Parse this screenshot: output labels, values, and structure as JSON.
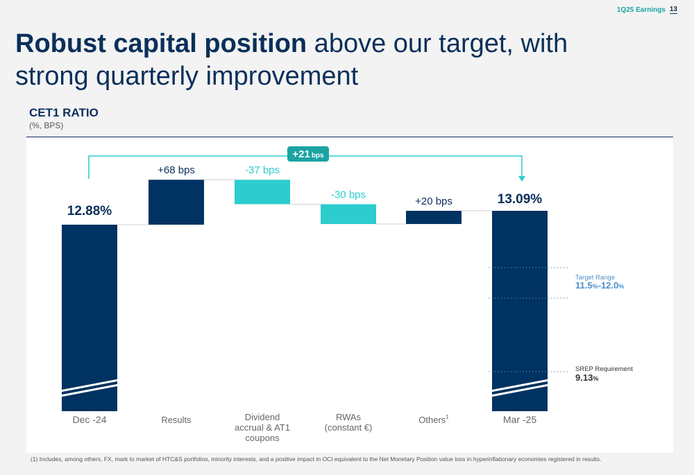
{
  "header": {
    "tag": "1Q25 Earnings",
    "page": "13"
  },
  "title": {
    "bold": "Robust capital position",
    "rest": " above our target, with strong quarterly improvement"
  },
  "chart_data": {
    "type": "bar",
    "subtype": "waterfall",
    "title": "CET1 RATIO",
    "subtitle": "(%, BPS)",
    "unit": "bps",
    "start": {
      "category": "Dec -24",
      "value": 12.88,
      "label": "12.88%"
    },
    "steps": [
      {
        "category": "Results",
        "delta_bps": 68,
        "label": "+68 bps",
        "kind": "increase"
      },
      {
        "category": "Dividend accrual & AT1 coupons",
        "delta_bps": -37,
        "label": "-37 bps",
        "kind": "decrease"
      },
      {
        "category": "RWAs (constant €)",
        "delta_bps": -30,
        "label": "-30 bps",
        "kind": "decrease"
      },
      {
        "category": "Others",
        "category_superscript": "1",
        "delta_bps": 20,
        "label": "+20 bps",
        "kind": "increase"
      }
    ],
    "end": {
      "category": "Mar -25",
      "value": 13.09,
      "label": "13.09%"
    },
    "total_change": {
      "value": "+21",
      "unit": "bps"
    },
    "reference_bands": [
      {
        "name": "Target Range",
        "value_text": "11.5",
        "value_unit": "%",
        "value_text2": "-12.0",
        "value_unit2": "%",
        "low": 11.5,
        "high": 12.0
      },
      {
        "name": "SREP Requirement",
        "value_text": "9.13",
        "value_unit": "%",
        "value": 9.13
      }
    ],
    "axis_break": true,
    "colors": {
      "increase": "#003262",
      "decrease": "#2dcccd",
      "total": "#003262",
      "increase_label": "#0a2f5a",
      "decrease_label": "#2dcccd"
    }
  },
  "footnote": "(1) Includes, among others, FX, mark to market of HTC&S portfolios, minority interests, and a positive impact in OCI equivalent to the Net Monetary Position value loss in hyperinflationary economies registered in results."
}
